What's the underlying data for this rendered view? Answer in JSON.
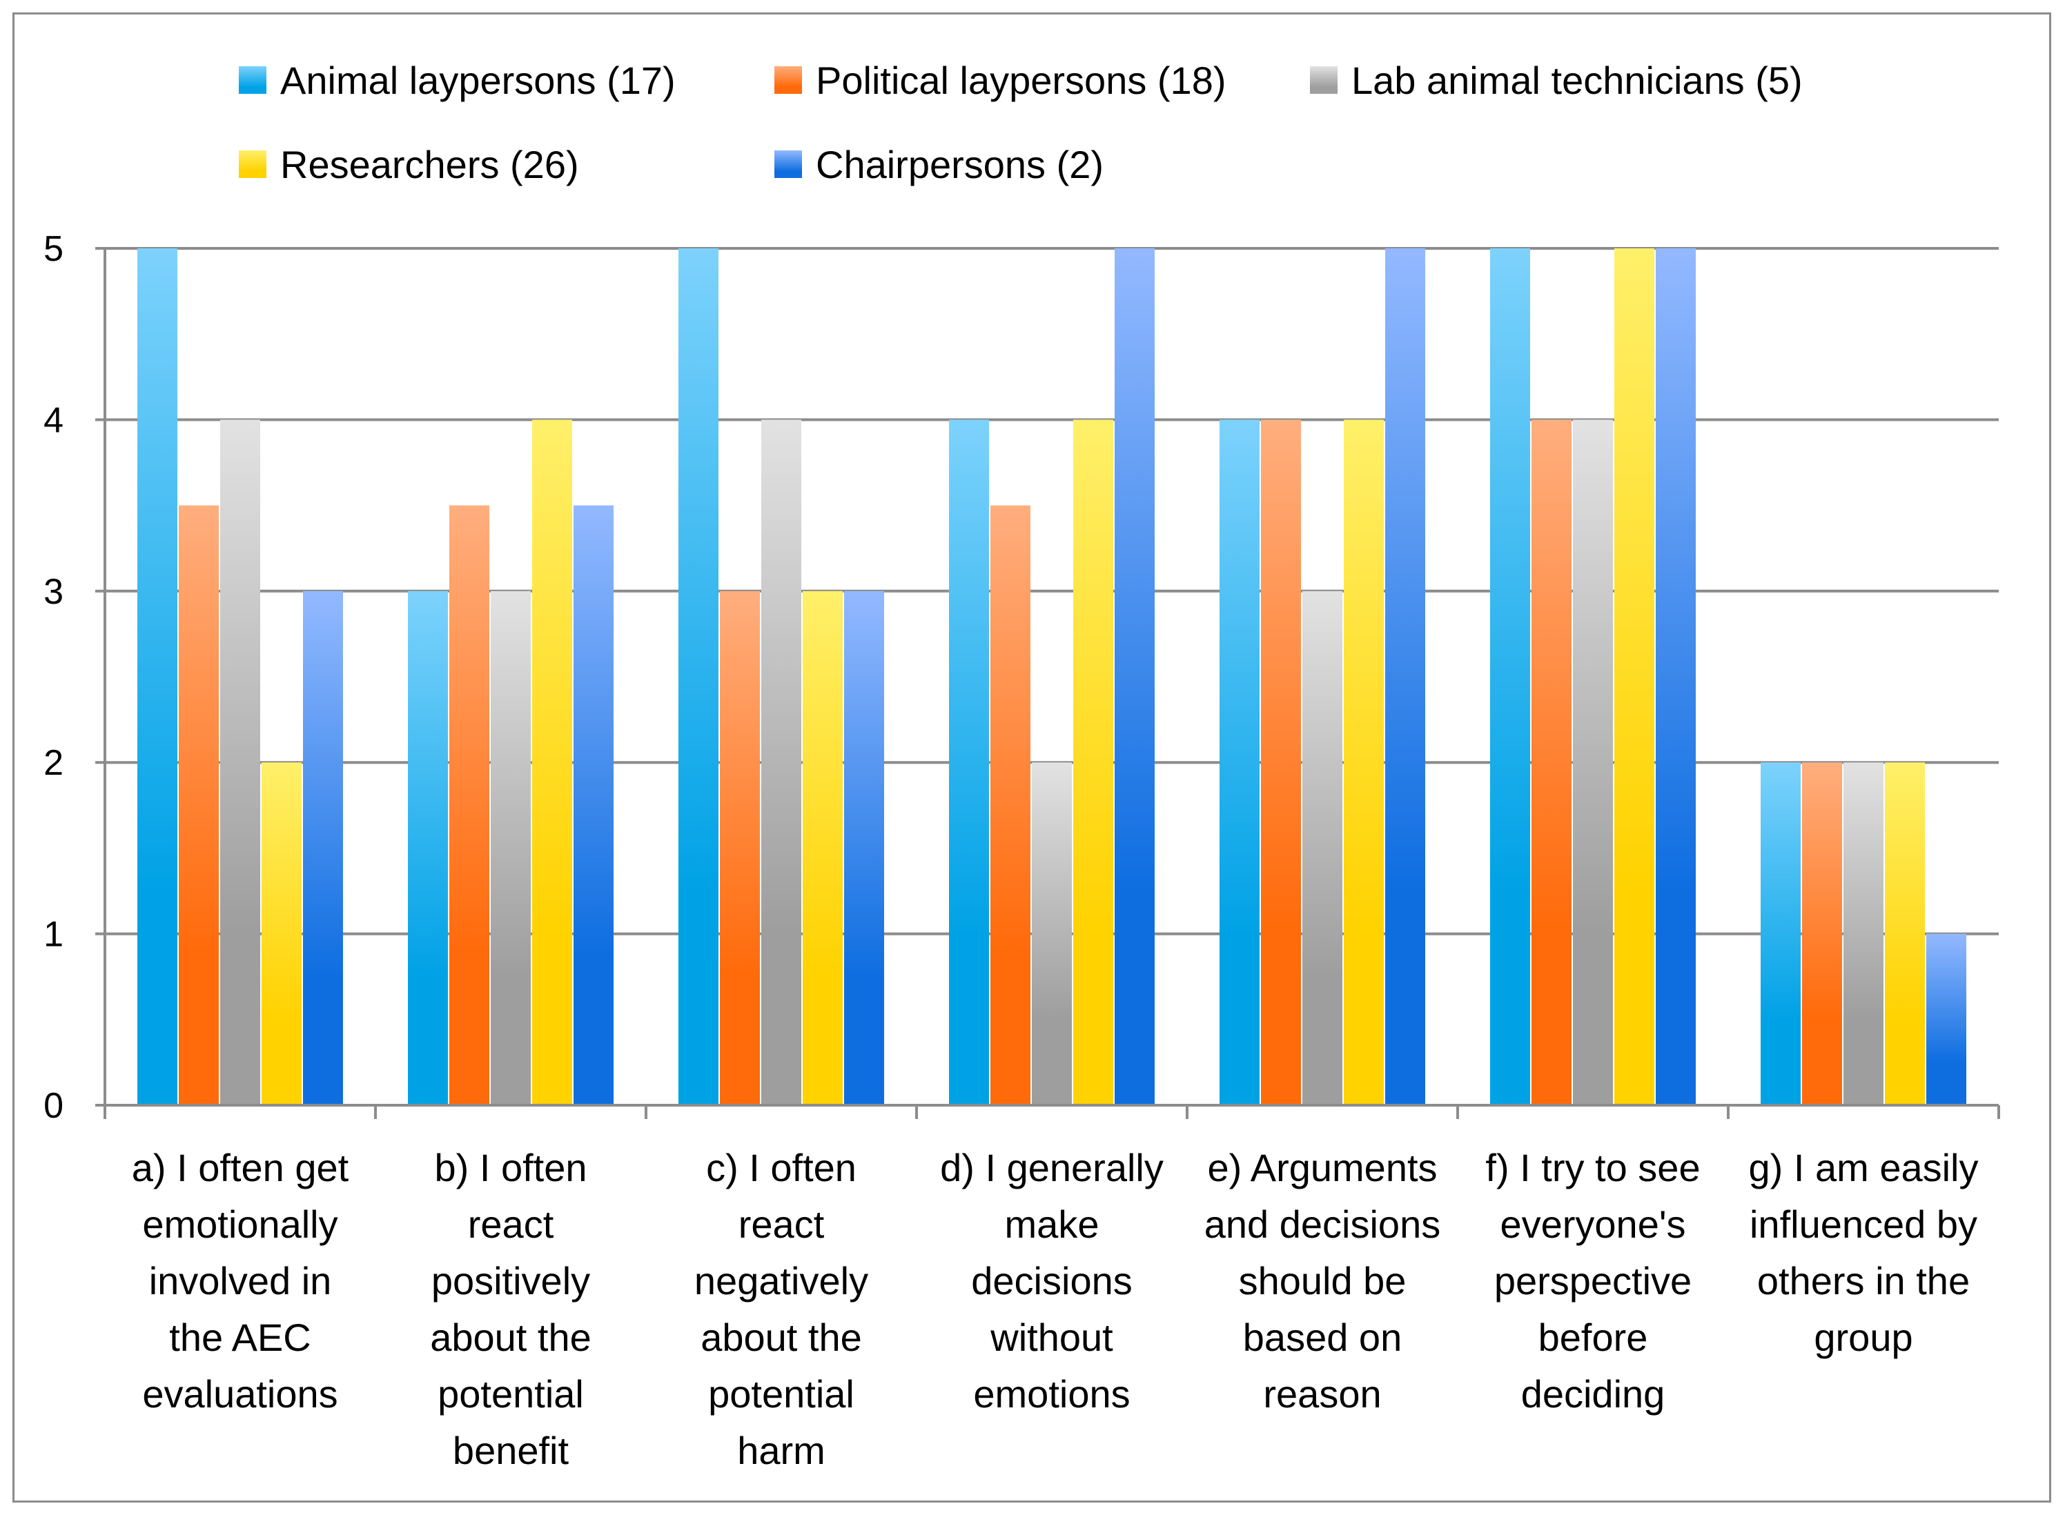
{
  "chart_data": {
    "type": "bar",
    "title": "",
    "xlabel": "",
    "ylabel": "",
    "ylim": [
      0,
      5
    ],
    "yticks": [
      "0",
      "1",
      "2",
      "3",
      "4",
      "5"
    ],
    "grid": true,
    "legend_position": "top",
    "categories": [
      [
        "a) I often get",
        "emotionally",
        "involved in",
        "the AEC",
        "evaluations"
      ],
      [
        "b) I often",
        "react",
        "positively",
        "about the",
        "potential",
        "benefit"
      ],
      [
        "c) I often",
        "react",
        "negatively",
        "about the",
        "potential",
        "harm"
      ],
      [
        "d) I generally",
        "make",
        "decisions",
        "without",
        "emotions"
      ],
      [
        "e) Arguments",
        "and decisions",
        "should be",
        "based on",
        "reason"
      ],
      [
        "f) I try to see",
        "everyone's",
        "perspective",
        "before",
        "deciding"
      ],
      [
        "g) I am easily",
        "influenced by",
        "others in the",
        "group"
      ]
    ],
    "series": [
      {
        "name": "Animal laypersons (17)",
        "color_top": "#7dd2fc",
        "color_bottom": "#00a2e6",
        "values": [
          5,
          3,
          5,
          4,
          4,
          5,
          2
        ]
      },
      {
        "name": "Political laypersons (18)",
        "color_top": "#ffae7e",
        "color_bottom": "#ff6a0a",
        "values": [
          3.5,
          3.5,
          3,
          3.5,
          4,
          4,
          2
        ]
      },
      {
        "name": "Lab animal technicians (5)",
        "color_top": "#e2e2e2",
        "color_bottom": "#9e9e9e",
        "values": [
          4,
          3,
          4,
          2,
          3,
          4,
          2
        ]
      },
      {
        "name": "Researchers (26)",
        "color_top": "#fff06a",
        "color_bottom": "#ffd200",
        "values": [
          2,
          4,
          3,
          4,
          4,
          5,
          2
        ]
      },
      {
        "name": "Chairpersons (2)",
        "color_top": "#93b9ff",
        "color_bottom": "#0e6ee0",
        "values": [
          3,
          3.5,
          3,
          5,
          5,
          5,
          1
        ]
      }
    ]
  }
}
